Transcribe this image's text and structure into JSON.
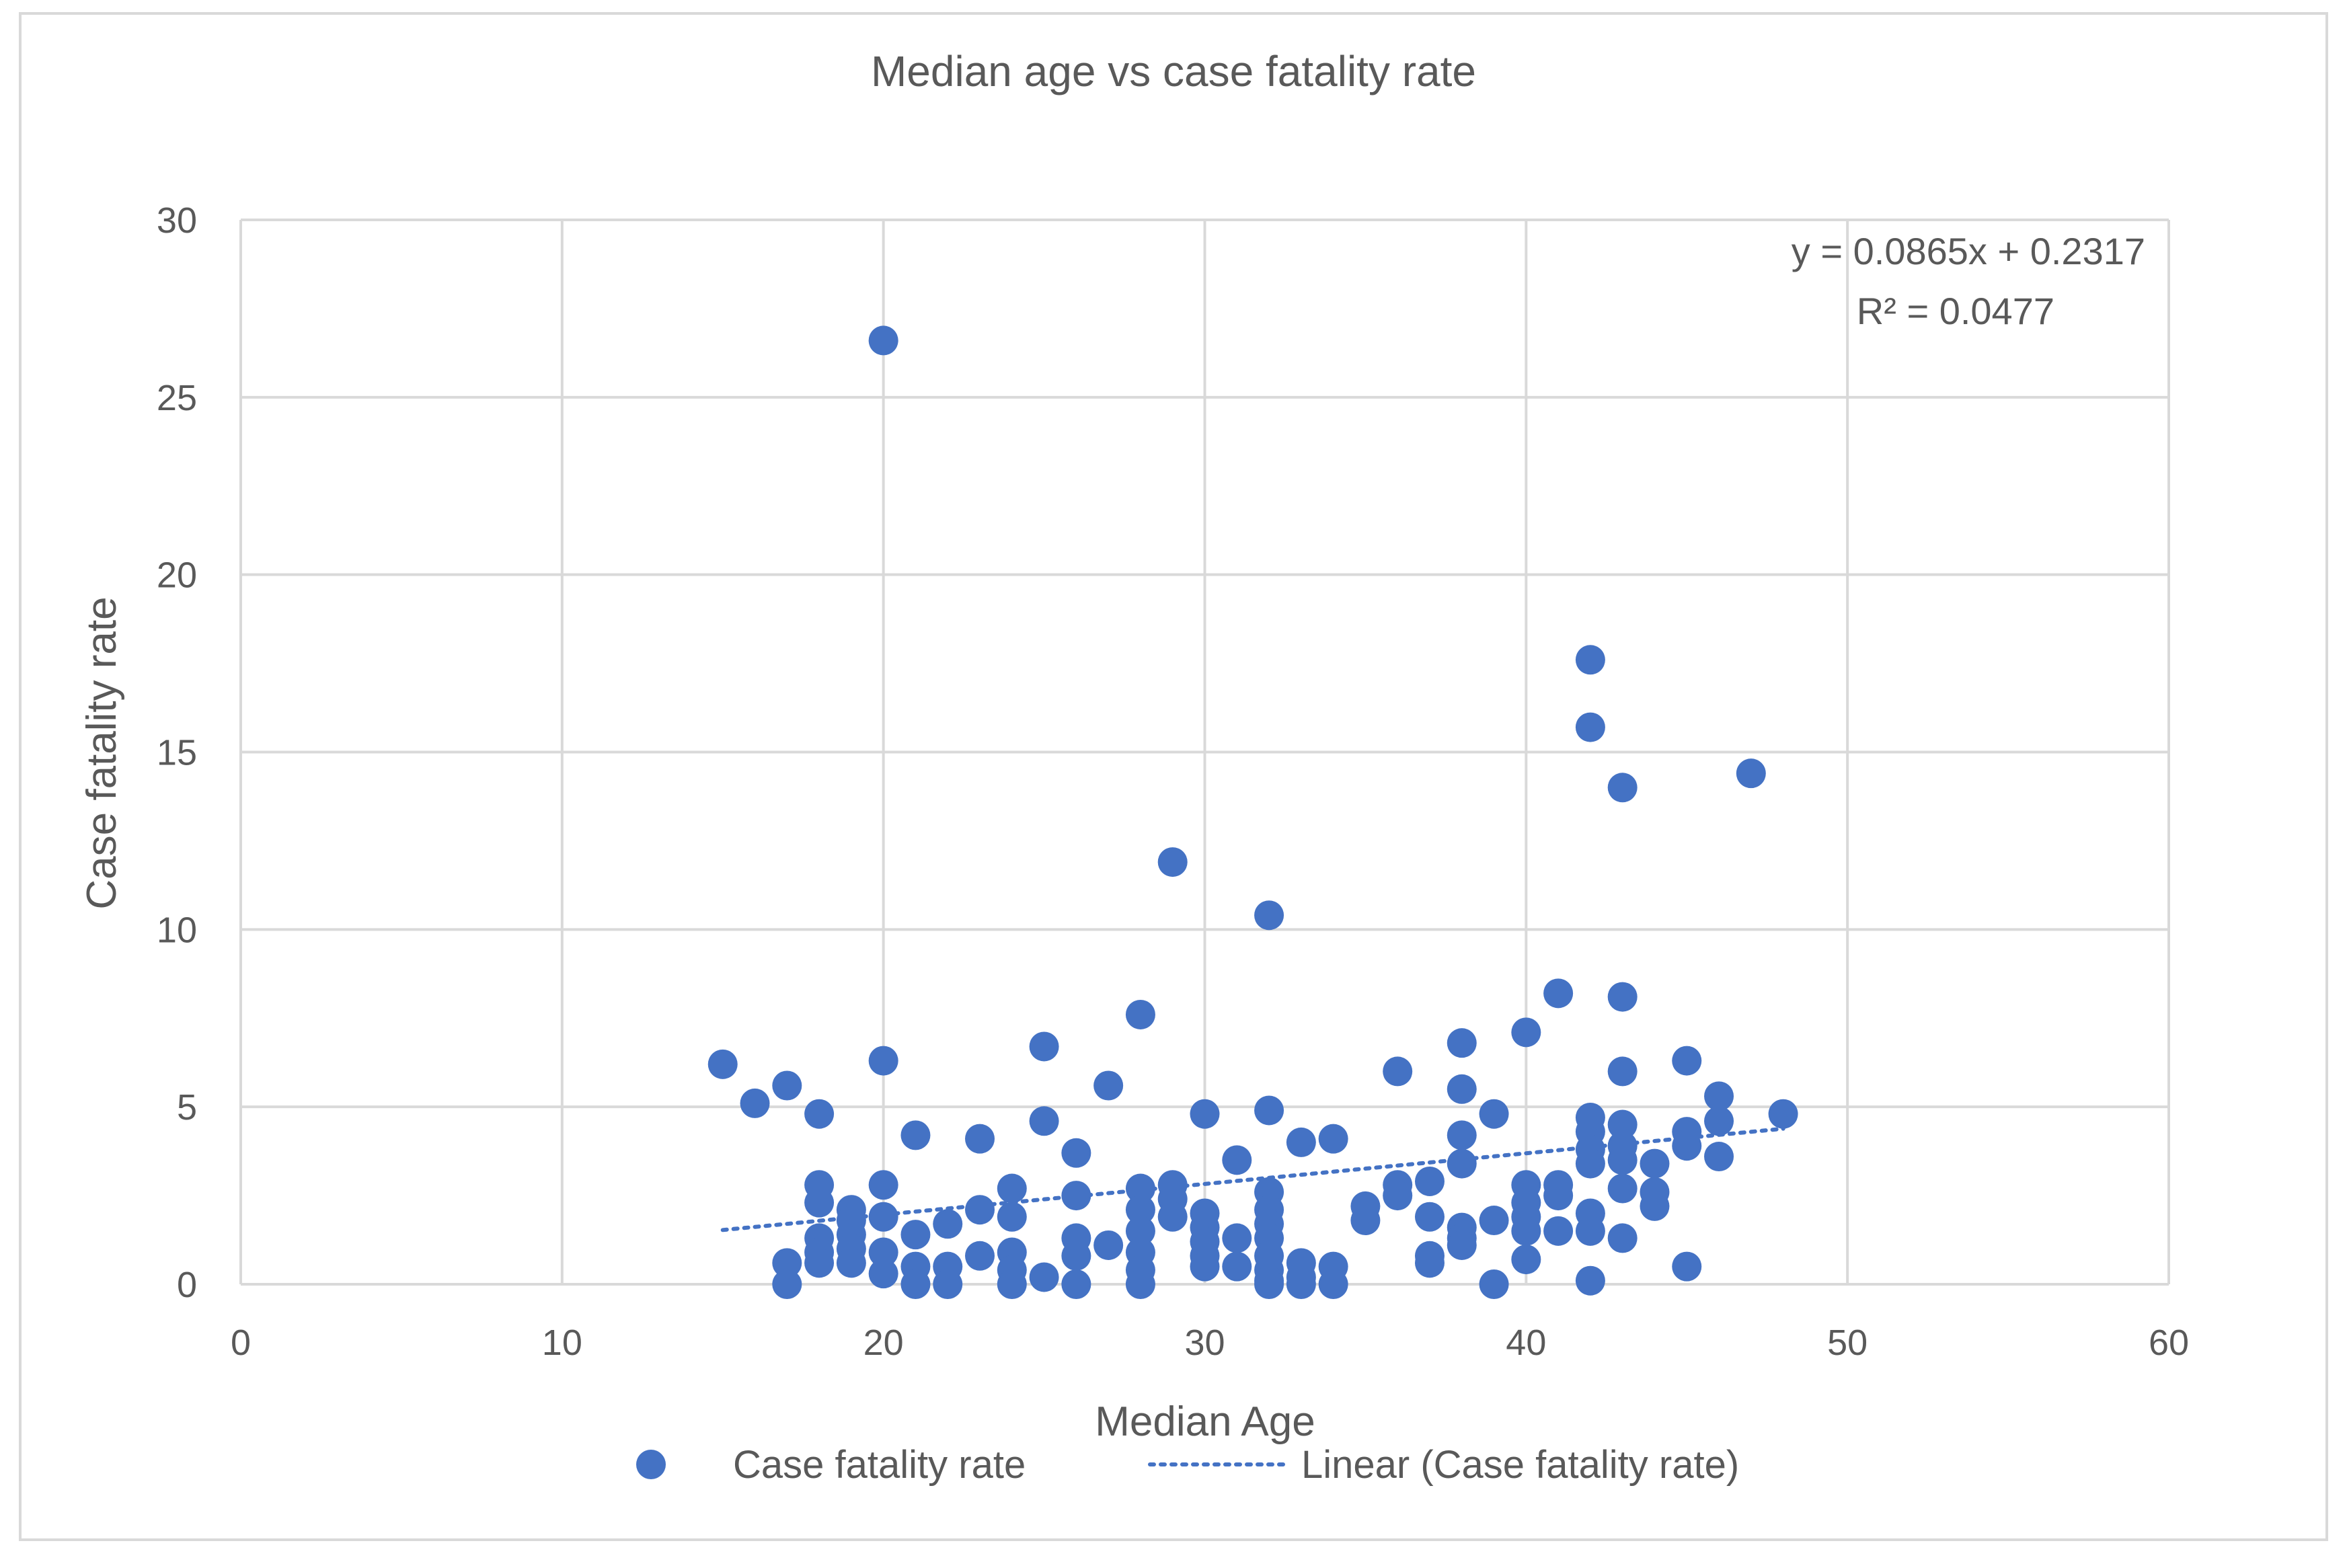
{
  "chart_data": {
    "type": "scatter",
    "title": "Median age vs case fatality rate",
    "xlabel": "Median Age",
    "ylabel": "Case fatality rate",
    "xlim": [
      0,
      60
    ],
    "ylim": [
      0,
      30
    ],
    "xticks": [
      0,
      10,
      20,
      30,
      40,
      50,
      60
    ],
    "yticks": [
      0,
      5,
      10,
      15,
      20,
      25,
      30
    ],
    "grid": true,
    "legend_position": "bottom",
    "point_color": "#4472C4",
    "trend_color": "#4472C4",
    "series": [
      {
        "name": "Case fatality rate",
        "points": [
          [
            15,
            6.2
          ],
          [
            16,
            5.1
          ],
          [
            17,
            5.6
          ],
          [
            17,
            0.6
          ],
          [
            17,
            0.0
          ],
          [
            18,
            4.8
          ],
          [
            18,
            2.8
          ],
          [
            18,
            2.3
          ],
          [
            18,
            1.3
          ],
          [
            18,
            0.9
          ],
          [
            18,
            0.6
          ],
          [
            19,
            2.1
          ],
          [
            19,
            1.8
          ],
          [
            19,
            1.4
          ],
          [
            19,
            1.0
          ],
          [
            19,
            0.6
          ],
          [
            20,
            26.6
          ],
          [
            20,
            6.3
          ],
          [
            20,
            2.8
          ],
          [
            20,
            1.9
          ],
          [
            20,
            0.9
          ],
          [
            20,
            0.3
          ],
          [
            21,
            4.2
          ],
          [
            21,
            1.4
          ],
          [
            21,
            0.5
          ],
          [
            21,
            0.0
          ],
          [
            22,
            1.7
          ],
          [
            22,
            0.5
          ],
          [
            22,
            0.0
          ],
          [
            23,
            4.1
          ],
          [
            23,
            2.1
          ],
          [
            23,
            0.8
          ],
          [
            24,
            2.7
          ],
          [
            24,
            1.9
          ],
          [
            24,
            0.9
          ],
          [
            24,
            0.4
          ],
          [
            24,
            0.0
          ],
          [
            25,
            6.7
          ],
          [
            25,
            4.6
          ],
          [
            25,
            0.2
          ],
          [
            26,
            3.7
          ],
          [
            26,
            2.5
          ],
          [
            26,
            1.3
          ],
          [
            26,
            0.8
          ],
          [
            26,
            0.0
          ],
          [
            27,
            5.6
          ],
          [
            27,
            1.1
          ],
          [
            28,
            7.6
          ],
          [
            28,
            2.7
          ],
          [
            28,
            2.1
          ],
          [
            28,
            1.5
          ],
          [
            28,
            0.9
          ],
          [
            28,
            0.4
          ],
          [
            28,
            0.0
          ],
          [
            29,
            11.9
          ],
          [
            29,
            2.8
          ],
          [
            29,
            2.4
          ],
          [
            29,
            1.9
          ],
          [
            30,
            4.8
          ],
          [
            30,
            2.0
          ],
          [
            30,
            1.6
          ],
          [
            30,
            1.2
          ],
          [
            30,
            0.8
          ],
          [
            30,
            0.5
          ],
          [
            31,
            3.5
          ],
          [
            31,
            1.3
          ],
          [
            31,
            0.5
          ],
          [
            32,
            10.4
          ],
          [
            32,
            4.9
          ],
          [
            32,
            2.6
          ],
          [
            32,
            2.1
          ],
          [
            32,
            1.7
          ],
          [
            32,
            1.3
          ],
          [
            32,
            0.8
          ],
          [
            32,
            0.4
          ],
          [
            32,
            0.1
          ],
          [
            32,
            0.0
          ],
          [
            33,
            4.0
          ],
          [
            33,
            0.6
          ],
          [
            33,
            0.2
          ],
          [
            33,
            0.0
          ],
          [
            34,
            4.1
          ],
          [
            34,
            0.5
          ],
          [
            34,
            0.0
          ],
          [
            35,
            2.2
          ],
          [
            35,
            1.8
          ],
          [
            36,
            6.0
          ],
          [
            36,
            2.8
          ],
          [
            36,
            2.5
          ],
          [
            37,
            2.9
          ],
          [
            37,
            1.9
          ],
          [
            37,
            0.8
          ],
          [
            37,
            0.6
          ],
          [
            38,
            6.8
          ],
          [
            38,
            5.5
          ],
          [
            38,
            4.2
          ],
          [
            38,
            3.4
          ],
          [
            38,
            1.6
          ],
          [
            38,
            1.3
          ],
          [
            38,
            1.1
          ],
          [
            39,
            4.8
          ],
          [
            39,
            1.8
          ],
          [
            39,
            0.0
          ],
          [
            40,
            7.1
          ],
          [
            40,
            2.8
          ],
          [
            40,
            2.3
          ],
          [
            40,
            1.9
          ],
          [
            40,
            1.5
          ],
          [
            40,
            0.7
          ],
          [
            41,
            8.2
          ],
          [
            41,
            2.8
          ],
          [
            41,
            2.5
          ],
          [
            41,
            1.5
          ],
          [
            42,
            17.6
          ],
          [
            42,
            15.7
          ],
          [
            42,
            4.7
          ],
          [
            42,
            4.3
          ],
          [
            42,
            3.8
          ],
          [
            42,
            3.4
          ],
          [
            42,
            2.0
          ],
          [
            42,
            1.5
          ],
          [
            42,
            0.1
          ],
          [
            43,
            14.0
          ],
          [
            43,
            8.1
          ],
          [
            43,
            6.0
          ],
          [
            43,
            4.5
          ],
          [
            43,
            3.9
          ],
          [
            43,
            3.5
          ],
          [
            43,
            2.7
          ],
          [
            43,
            1.3
          ],
          [
            44,
            3.4
          ],
          [
            44,
            2.6
          ],
          [
            44,
            2.2
          ],
          [
            45,
            6.3
          ],
          [
            45,
            4.3
          ],
          [
            45,
            3.9
          ],
          [
            45,
            0.5
          ],
          [
            46,
            5.3
          ],
          [
            46,
            4.6
          ],
          [
            46,
            3.6
          ],
          [
            47,
            14.4
          ],
          [
            48,
            4.8
          ]
        ]
      }
    ],
    "trendline": {
      "name": "Linear (Case fatality rate)",
      "slope": 0.0865,
      "intercept": 0.2317,
      "x_range": [
        15,
        48
      ],
      "equation": "y = 0.0865x + 0.2317",
      "r_squared": "R² = 0.0477"
    },
    "legend": [
      {
        "label": "Case fatality rate",
        "marker": "circle"
      },
      {
        "label": "Linear (Case fatality rate)",
        "marker": "dotted-line"
      }
    ]
  }
}
